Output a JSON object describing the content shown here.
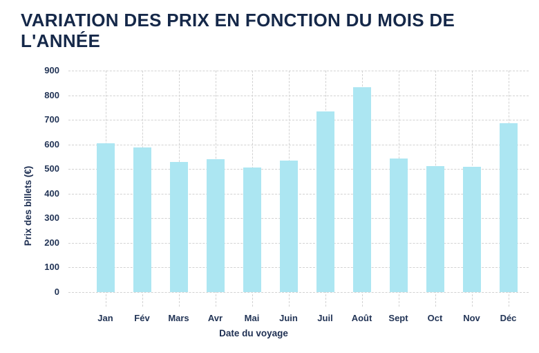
{
  "page": {
    "title": "VARIATION DES PRIX EN FONCTION DU MOIS DE L'ANNÉE"
  },
  "chart_data": {
    "type": "bar",
    "title": "VARIATION DES PRIX EN FONCTION DU MOIS DE L'ANNÉE",
    "categories": [
      "Jan",
      "Fév",
      "Mars",
      "Avr",
      "Mai",
      "Juin",
      "Juil",
      "Août",
      "Sept",
      "Oct",
      "Nov",
      "Déc"
    ],
    "values": [
      605,
      588,
      528,
      540,
      505,
      533,
      735,
      833,
      543,
      512,
      510,
      685
    ],
    "xlabel": "Date du voyage",
    "ylabel": "Prix des billets (€)",
    "ylim": [
      0,
      900
    ],
    "ytick_step": 100,
    "yticks": [
      "0",
      "100",
      "200",
      "300",
      "400",
      "500",
      "600",
      "700",
      "800",
      "900"
    ],
    "grid": "dashed",
    "legend": "none",
    "bar_color": "#ace6f2",
    "grid_color": "#d2d2d2",
    "tick_text_color": "#223456",
    "title_color": "#152849",
    "background_color": "#ffffff"
  }
}
